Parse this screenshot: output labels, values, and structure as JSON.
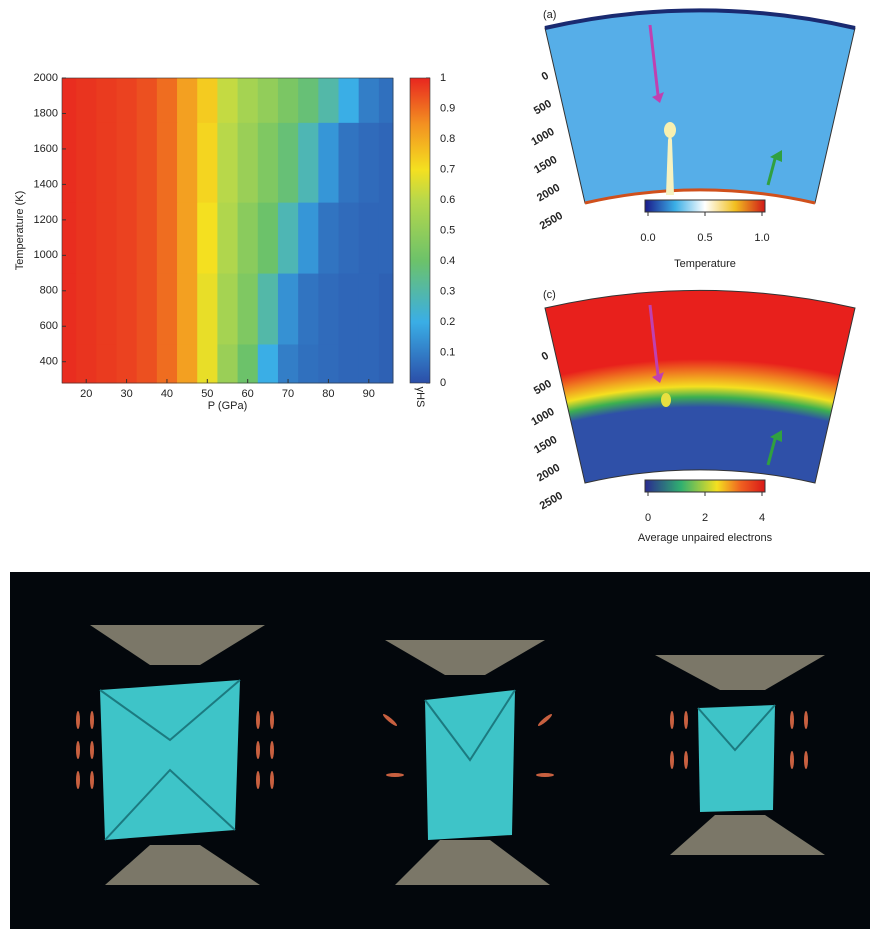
{
  "chart_data": [
    {
      "type": "heatmap",
      "xlabel": "P (GPa)",
      "ylabel": "Temperature (K)",
      "xlim": [
        14,
        96
      ],
      "xticks": [
        20,
        30,
        40,
        50,
        60,
        70,
        80,
        90
      ],
      "ylim": [
        280,
        2000
      ],
      "yticks": [
        400,
        600,
        800,
        1000,
        1200,
        1400,
        1600,
        1800,
        2000
      ],
      "x": [
        15,
        20,
        25,
        30,
        35,
        40,
        45,
        50,
        55,
        60,
        65,
        70,
        75,
        80,
        85,
        90,
        95
      ],
      "y": [
        300,
        700,
        1100,
        1500,
        2000
      ],
      "z": [
        [
          0.99,
          0.98,
          0.97,
          0.96,
          0.94,
          0.9,
          0.82,
          0.68,
          0.52,
          0.4,
          0.2,
          0.1,
          0.07,
          0.06,
          0.05,
          0.05,
          0.04
        ],
        [
          0.99,
          0.98,
          0.97,
          0.96,
          0.94,
          0.9,
          0.82,
          0.68,
          0.55,
          0.45,
          0.3,
          0.14,
          0.08,
          0.06,
          0.05,
          0.05,
          0.04
        ],
        [
          0.99,
          0.98,
          0.97,
          0.96,
          0.94,
          0.9,
          0.82,
          0.7,
          0.58,
          0.48,
          0.4,
          0.28,
          0.15,
          0.08,
          0.06,
          0.05,
          0.05
        ],
        [
          0.99,
          0.98,
          0.97,
          0.96,
          0.94,
          0.9,
          0.82,
          0.72,
          0.6,
          0.52,
          0.45,
          0.38,
          0.28,
          0.15,
          0.08,
          0.06,
          0.05
        ],
        [
          0.99,
          0.98,
          0.97,
          0.96,
          0.94,
          0.9,
          0.82,
          0.74,
          0.62,
          0.55,
          0.5,
          0.44,
          0.38,
          0.3,
          0.2,
          0.1,
          0.07
        ]
      ],
      "clim": [
        0,
        1
      ],
      "cticks": [
        0,
        0.1,
        0.2,
        0.3,
        0.4,
        0.5,
        0.6,
        0.7,
        0.8,
        0.9,
        1
      ],
      "colorbar_label": "γHS"
    },
    {
      "type": "section",
      "label": "(a)",
      "ylim": [
        0,
        2500
      ],
      "yticks": [
        0,
        500,
        1000,
        1500,
        2000,
        2500
      ],
      "clim": [
        0,
        1
      ],
      "cticks": [
        {
          "value": 0,
          "label": "0.0"
        },
        {
          "value": 0.5,
          "label": "0.5"
        },
        {
          "value": 1,
          "label": "1.0"
        }
      ],
      "colorbar_label": "Temperature"
    },
    {
      "type": "section",
      "label": "(c)",
      "ylim": [
        0,
        2500
      ],
      "yticks": [
        0,
        500,
        1000,
        1500,
        2000,
        2500
      ],
      "clim": [
        0,
        4
      ],
      "cticks": [
        0,
        2,
        4
      ],
      "colorbar_label": "Average unpaired electrons"
    }
  ]
}
